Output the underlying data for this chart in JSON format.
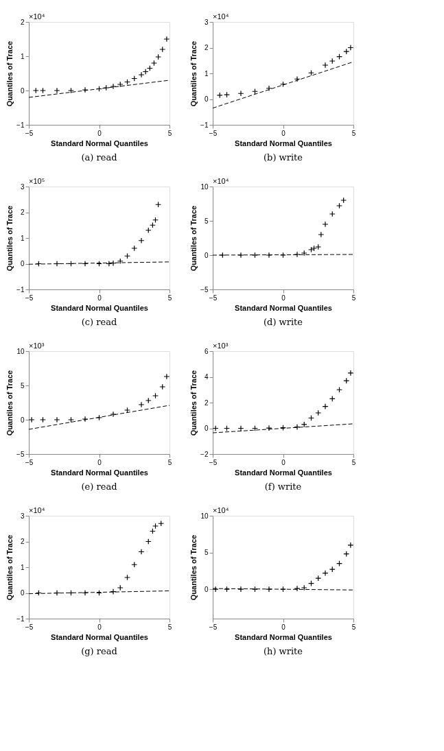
{
  "chart_data": [
    {
      "type": "scatter",
      "title": "(a) read",
      "xlabel": "Standard Normal Quantiles",
      "ylabel": "Quantiles of Trace",
      "annotations": [
        "×10⁴"
      ],
      "xlim": [
        -5,
        5
      ],
      "ylim": [
        -1,
        2
      ],
      "xticks": [
        -5,
        0,
        5
      ],
      "yticks": [
        -1,
        0,
        1,
        2
      ],
      "grid": false,
      "series": [
        {
          "type": "scatter",
          "marker": "cross",
          "color": "#000000",
          "x": [
            -4.5,
            -4,
            -3,
            -2,
            -1,
            0,
            0.5,
            1,
            1.5,
            2,
            2.5,
            3,
            3.3,
            3.6,
            3.9,
            4.2,
            4.5,
            4.8
          ],
          "values": [
            0,
            0,
            0,
            0,
            0.02,
            0.05,
            0.08,
            0.12,
            0.18,
            0.25,
            0.35,
            0.46,
            0.55,
            0.65,
            0.8,
            0.98,
            1.2,
            1.5
          ]
        },
        {
          "type": "line",
          "line_style": "dashed",
          "color": "#000000",
          "x": [
            -5,
            5
          ],
          "values": [
            -0.2,
            0.3
          ]
        }
      ]
    },
    {
      "type": "scatter",
      "title": "(b) write",
      "xlabel": "Standard Normal Quantiles",
      "ylabel": "Quantiles of Trace",
      "annotations": [
        "×10⁴"
      ],
      "xlim": [
        -5,
        5
      ],
      "ylim": [
        -1,
        3
      ],
      "xticks": [
        -5,
        0,
        5
      ],
      "yticks": [
        -1,
        0,
        1,
        2,
        3
      ],
      "grid": false,
      "series": [
        {
          "type": "scatter",
          "marker": "cross",
          "color": "#000000",
          "x": [
            -4.5,
            -4,
            -3,
            -2,
            -1,
            0,
            1,
            2,
            3,
            3.5,
            4,
            4.5,
            4.8
          ],
          "values": [
            0.15,
            0.17,
            0.22,
            0.3,
            0.42,
            0.58,
            0.78,
            1.02,
            1.32,
            1.48,
            1.65,
            1.85,
            2.0
          ]
        },
        {
          "type": "line",
          "line_style": "dashed",
          "color": "#000000",
          "x": [
            -5,
            5
          ],
          "values": [
            -0.35,
            1.45
          ]
        }
      ]
    },
    {
      "type": "scatter",
      "title": "(c) read",
      "xlabel": "Standard Normal Quantiles",
      "ylabel": "Quantiles of Trace",
      "annotations": [
        "×10⁵"
      ],
      "xlim": [
        -5,
        5
      ],
      "ylim": [
        -1,
        3
      ],
      "xticks": [
        -5,
        0,
        5
      ],
      "yticks": [
        -1,
        0,
        1,
        2,
        3
      ],
      "grid": false,
      "series": [
        {
          "type": "scatter",
          "marker": "cross",
          "color": "#000000",
          "x": [
            -4.3,
            -3,
            -2,
            -1,
            0,
            0.7,
            1,
            1.5,
            2,
            2.5,
            3,
            3.5,
            3.8,
            4,
            4.2
          ],
          "values": [
            0,
            0,
            0,
            0,
            0,
            0,
            0.02,
            0.1,
            0.3,
            0.6,
            0.9,
            1.3,
            1.5,
            1.7,
            2.3
          ]
        },
        {
          "type": "line",
          "line_style": "dashed",
          "color": "#000000",
          "x": [
            -5,
            5
          ],
          "values": [
            -0.02,
            0.07
          ]
        }
      ]
    },
    {
      "type": "scatter",
      "title": "(d) write",
      "xlabel": "Standard Normal Quantiles",
      "ylabel": "Quantiles of Trace",
      "annotations": [
        "×10⁴"
      ],
      "xlim": [
        -5,
        5
      ],
      "ylim": [
        -5,
        10
      ],
      "xticks": [
        -5,
        0,
        5
      ],
      "yticks": [
        -5,
        0,
        5,
        10
      ],
      "grid": false,
      "series": [
        {
          "type": "scatter",
          "marker": "cross",
          "color": "#000000",
          "x": [
            -4.3,
            -3,
            -2,
            -1,
            0,
            1,
            1.5,
            2,
            2.2,
            2.5,
            2.7,
            3,
            3.5,
            4,
            4.3
          ],
          "values": [
            0,
            0,
            0,
            0,
            0,
            0.1,
            0.3,
            0.8,
            1.0,
            1.2,
            3.0,
            4.5,
            6.0,
            7.2,
            8.0
          ]
        },
        {
          "type": "line",
          "line_style": "dashed",
          "color": "#000000",
          "x": [
            -5,
            5
          ],
          "values": [
            0,
            0.1
          ]
        }
      ]
    },
    {
      "type": "scatter",
      "title": "(e) read",
      "xlabel": "Standard Normal Quantiles",
      "ylabel": "Quantiles of Trace",
      "annotations": [
        "×10³"
      ],
      "xlim": [
        -5,
        5
      ],
      "ylim": [
        -5,
        10
      ],
      "xticks": [
        -5,
        0,
        5
      ],
      "yticks": [
        -5,
        0,
        5,
        10
      ],
      "grid": false,
      "series": [
        {
          "type": "scatter",
          "marker": "cross",
          "color": "#000000",
          "x": [
            -4.8,
            -4,
            -3,
            -2,
            -1,
            0,
            1,
            2,
            3,
            3.5,
            4,
            4.5,
            4.8
          ],
          "values": [
            0,
            0,
            0,
            0,
            0.1,
            0.3,
            0.8,
            1.4,
            2.2,
            2.8,
            3.5,
            4.8,
            6.3
          ]
        },
        {
          "type": "line",
          "line_style": "dashed",
          "color": "#000000",
          "x": [
            -5,
            5
          ],
          "values": [
            -1.4,
            2.1
          ]
        }
      ]
    },
    {
      "type": "scatter",
      "title": "(f) write",
      "xlabel": "Standard Normal Quantiles",
      "ylabel": "Quantiles of Trace",
      "annotations": [
        "×10³"
      ],
      "xlim": [
        -5,
        5
      ],
      "ylim": [
        -2,
        6
      ],
      "xticks": [
        -5,
        0,
        5
      ],
      "yticks": [
        -2,
        0,
        2,
        4,
        6
      ],
      "grid": false,
      "series": [
        {
          "type": "scatter",
          "marker": "cross",
          "color": "#000000",
          "x": [
            -4.8,
            -4,
            -3,
            -2,
            -1,
            0,
            1,
            1.5,
            2,
            2.5,
            3,
            3.5,
            4,
            4.5,
            4.8
          ],
          "values": [
            0,
            0,
            0,
            0,
            0.02,
            0.05,
            0.1,
            0.3,
            0.8,
            1.2,
            1.7,
            2.3,
            3.0,
            3.7,
            4.3
          ]
        },
        {
          "type": "line",
          "line_style": "dashed",
          "color": "#000000",
          "x": [
            -5,
            5
          ],
          "values": [
            -0.35,
            0.35
          ]
        }
      ]
    },
    {
      "type": "scatter",
      "title": "(g) read",
      "xlabel": "Standard Normal Quantiles",
      "ylabel": "Quantiles of Trace",
      "annotations": [
        "×10⁴"
      ],
      "xlim": [
        -5,
        5
      ],
      "ylim": [
        -1,
        3
      ],
      "xticks": [
        -5,
        0,
        5
      ],
      "yticks": [
        -1,
        0,
        1,
        2,
        3
      ],
      "grid": false,
      "series": [
        {
          "type": "scatter",
          "marker": "cross",
          "color": "#000000",
          "x": [
            -4.3,
            -3,
            -2,
            -1,
            0,
            1,
            1.5,
            2,
            2.5,
            3,
            3.5,
            3.8,
            4,
            4.4
          ],
          "values": [
            0,
            0,
            0,
            0,
            0,
            0.05,
            0.2,
            0.6,
            1.1,
            1.6,
            2.0,
            2.4,
            2.6,
            2.7
          ]
        },
        {
          "type": "line",
          "line_style": "dashed",
          "color": "#000000",
          "x": [
            -5,
            5
          ],
          "values": [
            -0.03,
            0.08
          ]
        }
      ]
    },
    {
      "type": "scatter",
      "title": "(h) write",
      "xlabel": "Standard Normal Quantiles",
      "ylabel": "Quantiles of Trace",
      "annotations": [
        "×10⁴"
      ],
      "xlim": [
        -5,
        5
      ],
      "ylim": [
        -4,
        10
      ],
      "xticks": [
        -5,
        0,
        5
      ],
      "yticks": [
        0,
        5,
        10
      ],
      "grid": false,
      "series": [
        {
          "type": "scatter",
          "marker": "cross",
          "color": "#000000",
          "x": [
            -4.8,
            -4,
            -3,
            -2,
            -1,
            0,
            1,
            1.5,
            2,
            2.5,
            3,
            3.5,
            4,
            4.5,
            4.8
          ],
          "values": [
            0,
            0,
            0,
            0,
            0,
            0,
            0.1,
            0.2,
            0.8,
            1.5,
            2.2,
            2.7,
            3.5,
            4.8,
            6.0
          ]
        },
        {
          "type": "line",
          "line_style": "dashed",
          "color": "#000000",
          "x": [
            -5,
            5
          ],
          "values": [
            0.1,
            -0.1
          ]
        }
      ]
    }
  ]
}
